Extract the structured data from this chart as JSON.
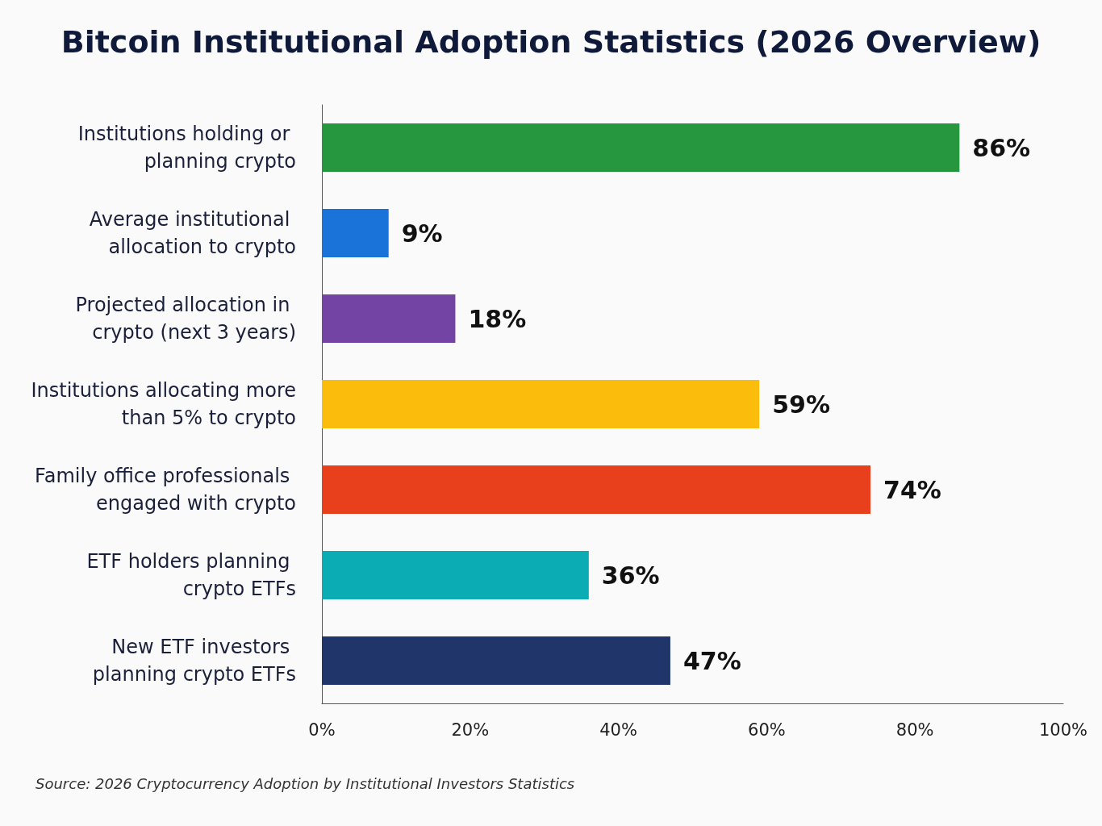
{
  "chart_data": {
    "type": "bar",
    "orientation": "horizontal",
    "title": "Bitcoin Institutional Adoption Statistics (2026 Overview)",
    "categories": [
      "Institutions holding or planning crypto",
      "Average institutional allocation to crypto",
      "Projected allocation in crypto (next 3 years)",
      "Institutions allocating more than 5% to crypto",
      "Family office professionals engaged with crypto",
      "ETF holders planning crypto ETFs",
      "New ETF investors planning crypto ETFs"
    ],
    "values": [
      86,
      9,
      18,
      59,
      74,
      36,
      47
    ],
    "value_labels": [
      "86%",
      "9%",
      "18%",
      "59%",
      "74%",
      "36%",
      "47%"
    ],
    "colors": [
      "#26963f",
      "#1a73d9",
      "#7444a4",
      "#fcbc0c",
      "#e8401c",
      "#0cacb4",
      "#20356a"
    ],
    "xlim": [
      0,
      100
    ],
    "xticks": [
      {
        "value": 0,
        "label": "0%"
      },
      {
        "value": 20,
        "label": "20%"
      },
      {
        "value": 40,
        "label": "40%"
      },
      {
        "value": 60,
        "label": "60%"
      },
      {
        "value": 80,
        "label": "80%"
      },
      {
        "value": 100,
        "label": "100%"
      }
    ],
    "grid": false,
    "annotations": [
      "Source: 2026 Cryptocurrency Adoption by Institutional Investors Statistics"
    ]
  }
}
